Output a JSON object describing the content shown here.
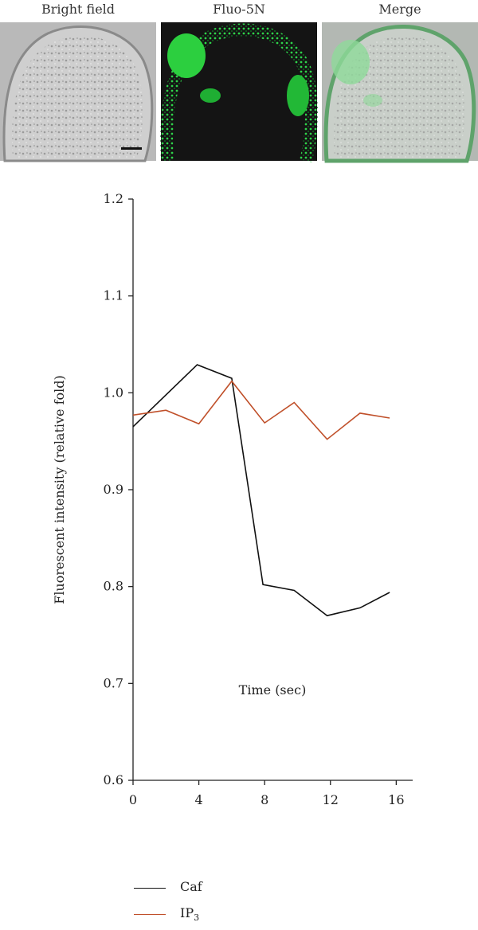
{
  "panels": [
    {
      "label": "Bright field"
    },
    {
      "label": "Fluo-5N"
    },
    {
      "label": "Merge"
    }
  ],
  "colors": {
    "caf": "#111111",
    "ip3": "#c0502a",
    "fluo": "#22c23a"
  },
  "chart_data": {
    "type": "line",
    "xlabel": "Time (sec)",
    "ylabel": "Fluorescent intensity (relative fold)",
    "xlim": [
      0,
      17
    ],
    "ylim": [
      0.6,
      1.2
    ],
    "xticks": [
      0,
      4,
      8,
      12,
      16
    ],
    "yticks": [
      0.6,
      0.7,
      0.8,
      0.9,
      1.0,
      1.1,
      1.2
    ],
    "ytick_labels": [
      "0.6",
      "0.7",
      "0.8",
      "0.9",
      "1.0",
      "1.1",
      "1.2"
    ],
    "series": [
      {
        "name": "Caf",
        "x": [
          0,
          3.9,
          6,
          7.9,
          9.8,
          11.8,
          13.8,
          15.6
        ],
        "y": [
          0.965,
          1.029,
          1.015,
          0.802,
          0.796,
          0.77,
          0.778,
          0.794
        ]
      },
      {
        "name": "IP",
        "name_sub": "3",
        "x": [
          0,
          2,
          4,
          6,
          8,
          9.8,
          11.8,
          13.8,
          15.6
        ],
        "y": [
          0.977,
          0.982,
          0.968,
          1.012,
          0.969,
          0.99,
          0.952,
          0.979,
          0.974
        ]
      }
    ]
  }
}
